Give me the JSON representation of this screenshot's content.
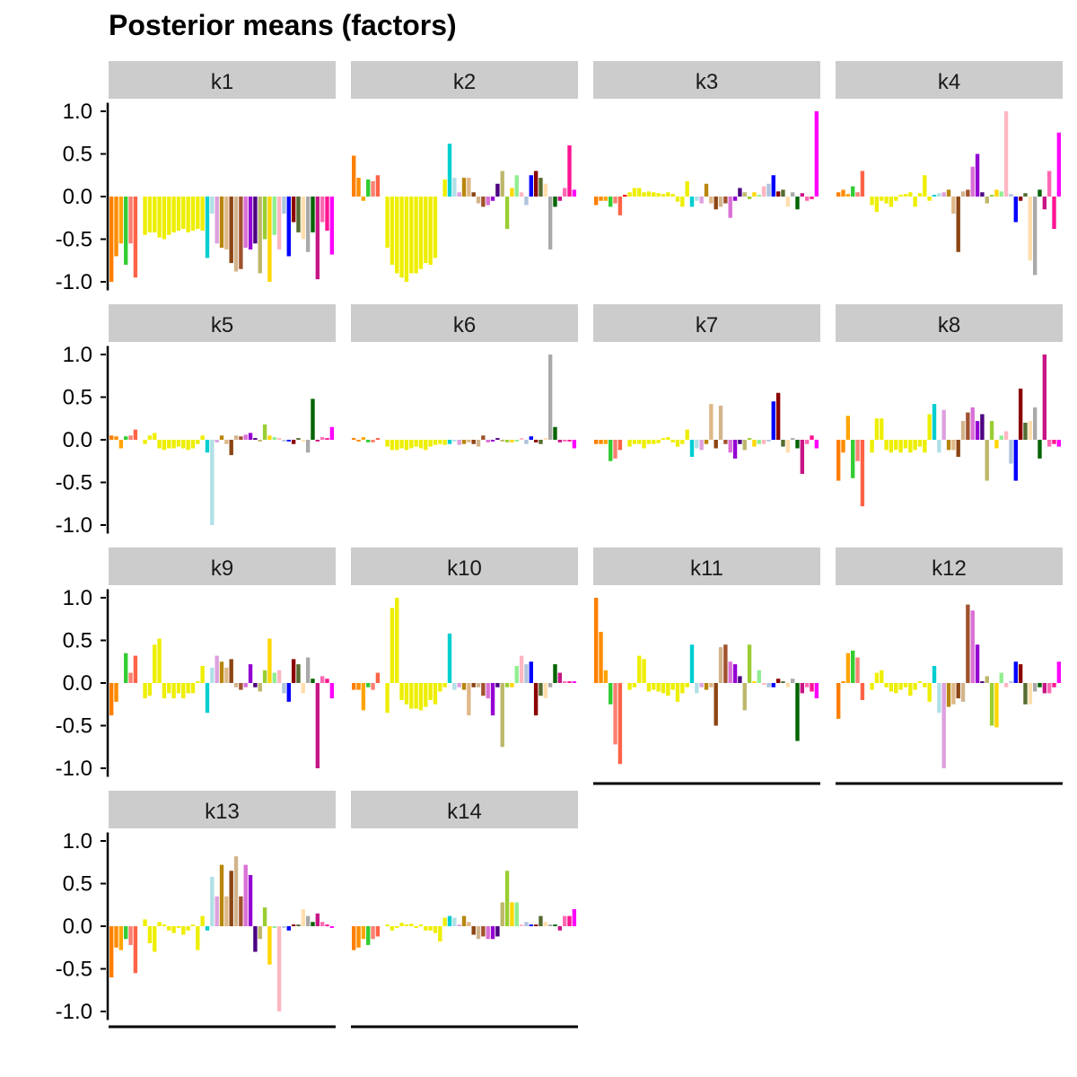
{
  "chart_data": {
    "type": "bar",
    "title": "Posterior means (factors)",
    "xlabel": "",
    "ylabel": "",
    "ylim": [
      -1.05,
      1.1
    ],
    "yticks": [
      1.0,
      0.5,
      0.0,
      -0.5,
      -1.0
    ],
    "ytick_labels": [
      "1.0",
      "0.5",
      "0.0",
      "-0.5",
      "-1.0"
    ],
    "grid": false,
    "palette": [
      "#ff7f00",
      "#ff8c00",
      "#ffa500",
      "#32cd32",
      "#fa8072",
      "#ff6347",
      "#ff0000",
      "#eeee00",
      "#eeee00",
      "#eeee00",
      "#eeee00",
      "#eeee00",
      "#eeee00",
      "#eeee00",
      "#eeee00",
      "#eeee00",
      "#eeee00",
      "#eeee00",
      "#eeee00",
      "#eeee00",
      "#00ced1",
      "#b0e0e6",
      "#dda0dd",
      "#b8860b",
      "#deb887",
      "#8b4513",
      "#d2b48c",
      "#a0522d",
      "#da70d6",
      "#9400d3",
      "#4b0082",
      "#bdb76b",
      "#9acd32",
      "#ffd700",
      "#90ee90",
      "#ffb6c1",
      "#b0c4de",
      "#0000ff",
      "#8b0000",
      "#556b2f",
      "#ffdead",
      "#a9a9a9",
      "#006400",
      "#c71585",
      "#ff69b4",
      "#ff1493",
      "#ff00ff"
    ],
    "series": [
      {
        "name": "k1",
        "values": [
          -1.0,
          -0.7,
          -0.55,
          -0.8,
          -0.55,
          -0.95,
          0,
          -0.45,
          -0.42,
          -0.42,
          -0.48,
          -0.5,
          -0.45,
          -0.42,
          -0.4,
          -0.38,
          -0.42,
          -0.4,
          -0.38,
          -0.4,
          -0.72,
          -0.2,
          -0.55,
          -0.6,
          -0.62,
          -0.78,
          -0.88,
          -0.85,
          -0.6,
          -0.62,
          -0.55,
          -0.9,
          -0.5,
          -1.0,
          -0.45,
          -0.62,
          -0.2,
          -0.7,
          -0.3,
          -0.42,
          -0.5,
          -0.65,
          -0.42,
          -0.97,
          -0.3,
          -0.4,
          -0.68
        ]
      },
      {
        "name": "k2",
        "values": [
          0.48,
          0.22,
          -0.05,
          0.2,
          0.18,
          0.25,
          0,
          -0.6,
          -0.8,
          -0.9,
          -0.95,
          -1.0,
          -0.9,
          -0.9,
          -0.85,
          -0.78,
          -0.8,
          -0.72,
          0,
          0.2,
          0.62,
          0.22,
          0.05,
          0.22,
          0.22,
          0.05,
          -0.08,
          -0.12,
          -0.1,
          -0.05,
          0.15,
          0.3,
          -0.38,
          0.1,
          0.25,
          0.05,
          -0.1,
          0.25,
          0.3,
          0.22,
          0.15,
          -0.62,
          -0.12,
          -0.05,
          0.1,
          0.6,
          0.08
        ]
      },
      {
        "name": "k3",
        "values": [
          -0.1,
          -0.05,
          -0.05,
          -0.12,
          -0.08,
          -0.22,
          0.02,
          0.05,
          0.1,
          0.1,
          0.05,
          0.06,
          0.05,
          0.04,
          0.03,
          0.05,
          0.03,
          -0.06,
          -0.12,
          0.18,
          -0.12,
          -0.05,
          -0.08,
          0.15,
          -0.08,
          -0.15,
          -0.12,
          -0.08,
          -0.25,
          -0.05,
          0.1,
          0.05,
          -0.03,
          0.05,
          0.02,
          0.12,
          0.15,
          0.25,
          0.06,
          0.08,
          -0.12,
          0.05,
          -0.15,
          0.04,
          -0.05,
          -0.03,
          1.0
        ]
      },
      {
        "name": "k4",
        "values": [
          0.05,
          0.08,
          0.03,
          0.12,
          0.05,
          0.3,
          0,
          -0.1,
          -0.18,
          -0.05,
          -0.08,
          -0.12,
          -0.05,
          0.02,
          0.03,
          0.05,
          -0.12,
          0.04,
          0.25,
          -0.05,
          0.02,
          0.04,
          0.05,
          0.08,
          -0.2,
          -0.65,
          0.06,
          0.08,
          0.35,
          0.5,
          0.05,
          -0.08,
          0.02,
          0.08,
          0.06,
          1.0,
          0.03,
          -0.3,
          -0.05,
          0.04,
          -0.75,
          -0.92,
          0.08,
          -0.15,
          0.3,
          -0.38,
          0.75
        ]
      },
      {
        "name": "k5",
        "values": [
          0.05,
          0.04,
          -0.1,
          0.04,
          0.05,
          0.12,
          0,
          -0.05,
          0.05,
          0.08,
          -0.1,
          -0.12,
          -0.1,
          -0.1,
          -0.08,
          -0.1,
          -0.12,
          -0.1,
          -0.05,
          0.05,
          -0.15,
          -1.0,
          -0.03,
          0.05,
          -0.05,
          -0.18,
          0.05,
          0.04,
          0.06,
          0.08,
          0.02,
          -0.02,
          0.18,
          0.05,
          0.03,
          0.02,
          -0.02,
          -0.02,
          -0.05,
          0.02,
          -0.02,
          -0.15,
          0.48,
          -0.02,
          0.03,
          0.02,
          0.15
        ]
      },
      {
        "name": "k6",
        "values": [
          0.02,
          -0.02,
          0.03,
          -0.03,
          -0.03,
          0.02,
          0,
          -0.08,
          -0.12,
          -0.12,
          -0.1,
          -0.12,
          -0.1,
          -0.08,
          -0.1,
          -0.12,
          -0.08,
          -0.06,
          -0.05,
          -0.06,
          -0.05,
          -0.02,
          -0.06,
          -0.05,
          -0.03,
          -0.05,
          -0.08,
          0.05,
          -0.03,
          -0.02,
          0.02,
          -0.02,
          -0.03,
          -0.03,
          -0.02,
          0.02,
          -0.05,
          0.04,
          -0.03,
          -0.05,
          0.02,
          1.0,
          0.15,
          -0.03,
          -0.02,
          -0.02,
          -0.1
        ]
      },
      {
        "name": "k7",
        "values": [
          -0.05,
          -0.05,
          -0.05,
          -0.25,
          -0.22,
          -0.12,
          0,
          -0.08,
          -0.05,
          -0.05,
          -0.1,
          -0.05,
          -0.05,
          -0.04,
          0.02,
          0.03,
          -0.03,
          -0.08,
          -0.05,
          0.12,
          -0.2,
          -0.1,
          -0.12,
          -0.05,
          0.42,
          -0.1,
          0.4,
          -0.05,
          -0.15,
          -0.22,
          -0.05,
          -0.12,
          0.02,
          -0.08,
          -0.05,
          -0.05,
          -0.02,
          0.45,
          0.55,
          -0.08,
          -0.15,
          0.02,
          -0.1,
          -0.4,
          -0.05,
          0.05,
          -0.1
        ]
      },
      {
        "name": "k8",
        "values": [
          -0.48,
          -0.15,
          0.28,
          -0.45,
          -0.25,
          -0.78,
          0,
          -0.15,
          0.25,
          0.25,
          -0.12,
          -0.15,
          -0.12,
          -0.15,
          -0.1,
          -0.15,
          -0.12,
          -0.08,
          -0.15,
          0.3,
          0.42,
          -0.15,
          0.35,
          -0.12,
          -0.12,
          -0.2,
          0.22,
          0.32,
          0.38,
          0.22,
          0.3,
          -0.48,
          0.22,
          -0.1,
          0.05,
          0.1,
          -0.28,
          -0.48,
          0.6,
          0.2,
          0.22,
          0.38,
          -0.22,
          1.0,
          -0.08,
          -0.05,
          -0.08
        ]
      },
      {
        "name": "k9",
        "values": [
          -0.38,
          -0.22,
          0,
          0.35,
          0.12,
          0.32,
          0,
          -0.18,
          -0.15,
          0.45,
          0.52,
          -0.18,
          -0.12,
          -0.18,
          -0.12,
          -0.18,
          -0.12,
          -0.12,
          0.02,
          0.2,
          -0.35,
          0.18,
          0.32,
          0.25,
          0.18,
          0.28,
          -0.05,
          -0.08,
          -0.05,
          0.22,
          -0.05,
          -0.1,
          0.15,
          0.52,
          0.12,
          0.15,
          -0.12,
          -0.22,
          0.28,
          0.22,
          -0.12,
          0.3,
          0.05,
          -1.0,
          0.08,
          0.05,
          -0.18
        ]
      },
      {
        "name": "k10",
        "values": [
          -0.08,
          -0.08,
          -0.32,
          -0.05,
          -0.08,
          0.12,
          0,
          -0.35,
          0.88,
          1.0,
          -0.2,
          -0.25,
          -0.3,
          -0.3,
          -0.32,
          -0.28,
          -0.2,
          -0.25,
          -0.1,
          -0.05,
          0.58,
          -0.08,
          -0.05,
          -0.08,
          -0.38,
          -0.05,
          -0.05,
          -0.15,
          -0.18,
          -0.38,
          -0.05,
          -0.75,
          -0.05,
          -0.05,
          0.2,
          0.32,
          0.22,
          0.25,
          -0.38,
          -0.15,
          -0.18,
          -0.05,
          0.22,
          0.12,
          0.02,
          0.02,
          0.02
        ]
      },
      {
        "name": "k11",
        "values": [
          1.0,
          0.6,
          0.15,
          -0.25,
          -0.72,
          -0.95,
          0,
          -0.08,
          -0.05,
          0.32,
          0.28,
          -0.1,
          -0.08,
          -0.1,
          -0.12,
          -0.15,
          -0.08,
          -0.22,
          -0.12,
          -0.05,
          0.45,
          -0.12,
          -0.05,
          -0.08,
          -0.05,
          -0.5,
          0.42,
          0.45,
          0.25,
          0.22,
          0.08,
          -0.32,
          0.45,
          0.02,
          0.15,
          -0.02,
          -0.05,
          -0.05,
          0.05,
          0.02,
          -0.05,
          0.05,
          -0.68,
          -0.12,
          -0.05,
          -0.1,
          -0.18
        ]
      },
      {
        "name": "k12",
        "values": [
          -0.42,
          0.02,
          0.35,
          0.38,
          0.3,
          -0.2,
          0,
          -0.08,
          0.12,
          0.15,
          -0.05,
          -0.1,
          -0.12,
          -0.08,
          -0.05,
          -0.15,
          -0.08,
          0.02,
          -0.05,
          -0.22,
          0.2,
          -0.35,
          -1.0,
          -0.28,
          -0.25,
          -0.18,
          -0.22,
          0.92,
          0.85,
          0.45,
          0.02,
          0.08,
          -0.5,
          -0.52,
          0.12,
          -0.05,
          0.02,
          0.25,
          0.22,
          -0.25,
          -0.25,
          -0.1,
          -0.05,
          -0.12,
          -0.12,
          -0.05,
          0.25
        ]
      },
      {
        "name": "k13",
        "values": [
          -0.6,
          -0.25,
          -0.28,
          -0.15,
          -0.22,
          -0.55,
          0,
          0.08,
          -0.2,
          -0.3,
          0.05,
          0.02,
          -0.05,
          -0.08,
          -0.02,
          -0.1,
          -0.05,
          0.02,
          -0.28,
          0.12,
          -0.05,
          0.58,
          0.35,
          0.72,
          0.35,
          0.65,
          0.82,
          0.35,
          0.72,
          0.6,
          -0.3,
          -0.15,
          0.22,
          -0.45,
          -0.02,
          -1.0,
          -0.02,
          -0.05,
          0.02,
          0.02,
          0.2,
          0.12,
          0.05,
          0.15,
          0.05,
          0.02,
          -0.02
        ]
      },
      {
        "name": "k14",
        "values": [
          -0.28,
          -0.25,
          -0.15,
          -0.22,
          -0.15,
          -0.12,
          0,
          0.02,
          -0.05,
          -0.02,
          0.04,
          0.02,
          0.03,
          -0.02,
          0.02,
          -0.05,
          -0.05,
          -0.08,
          -0.18,
          0.1,
          0.12,
          0.1,
          0.02,
          0.12,
          0.05,
          -0.1,
          -0.15,
          -0.12,
          -0.15,
          -0.15,
          -0.12,
          0.28,
          0.65,
          0.28,
          0.28,
          0.02,
          0.05,
          0.02,
          0.02,
          0.12,
          0.05,
          0.02,
          0.02,
          -0.05,
          0.12,
          0.12,
          0.2
        ]
      }
    ]
  }
}
